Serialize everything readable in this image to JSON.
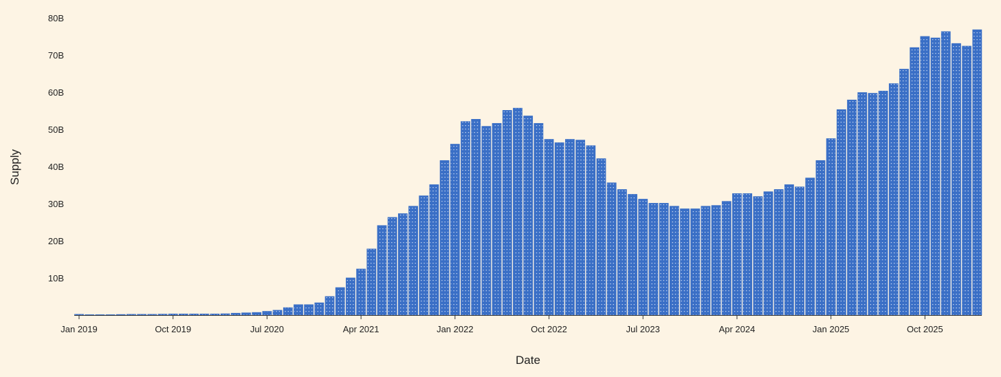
{
  "chart_data": {
    "type": "bar",
    "title": "",
    "xlabel": "Date",
    "ylabel": "Supply",
    "ylim": [
      0,
      80
    ],
    "y_unit": "B",
    "y_ticks": [
      "10B",
      "20B",
      "30B",
      "40B",
      "50B",
      "60B",
      "70B",
      "80B"
    ],
    "x_ticks": [
      "Jan 2019",
      "Oct 2019",
      "Jul 2020",
      "Apr 2021",
      "Jan 2022",
      "Oct 2022",
      "Jul 2023",
      "Apr 2024",
      "Jan 2025",
      "Oct 2025"
    ],
    "start_month": "2019-01",
    "end_month": "2026-03",
    "grid": false,
    "bar_color": "#3a6fc6",
    "background": "#fdf4e4",
    "values": [
      0.2,
      0.1,
      0.1,
      0.1,
      0.15,
      0.2,
      0.2,
      0.2,
      0.25,
      0.3,
      0.3,
      0.3,
      0.3,
      0.3,
      0.35,
      0.5,
      0.6,
      0.7,
      1.0,
      1.3,
      2.0,
      2.8,
      2.8,
      3.3,
      5.0,
      7.4,
      10.0,
      12.4,
      17.8,
      24.1,
      26.3,
      27.3,
      29.3,
      32.1,
      35.1,
      41.6,
      46.0,
      52.1,
      52.7,
      50.8,
      51.6,
      55.1,
      55.7,
      53.6,
      51.6,
      47.3,
      46.4,
      47.3,
      47.1,
      45.6,
      42.1,
      35.6,
      33.8,
      32.5,
      31.2,
      30.1,
      30.1,
      29.3,
      28.6,
      28.6,
      29.3,
      29.5,
      30.6,
      32.7,
      32.7,
      31.9,
      33.2,
      33.8,
      35.1,
      34.5,
      36.9,
      41.6,
      47.5,
      55.3,
      57.9,
      59.9,
      59.7,
      60.3,
      62.3,
      66.2,
      72.0,
      75.0,
      74.6,
      76.3,
      73.1,
      72.4,
      76.8
    ]
  }
}
